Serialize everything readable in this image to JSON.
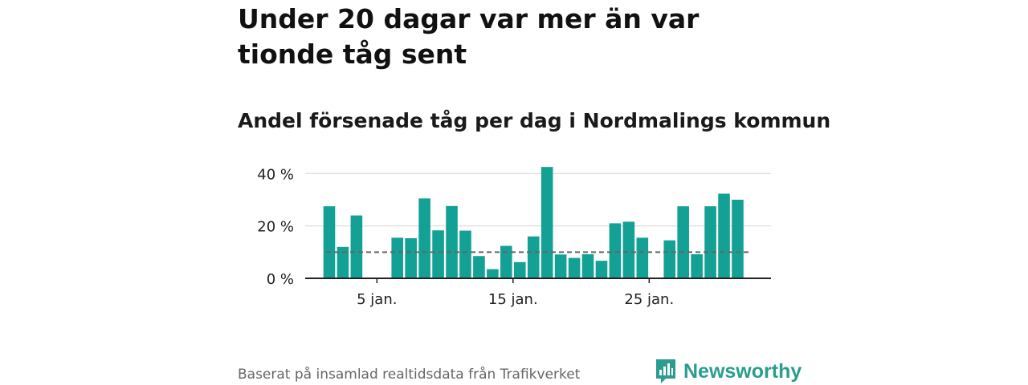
{
  "title": "Under 20 dagar var mer än var tionde tåg sent",
  "subtitle": "Andel försenade tåg per dag i Nordmalings kommun",
  "source": "Baserat på insamlad realtidsdata från Trafikverket",
  "brand": {
    "name": "Newsworthy",
    "color": "#2a9d8f"
  },
  "chart_data": {
    "type": "bar",
    "x": [
      1,
      2,
      3,
      4,
      5,
      6,
      7,
      8,
      9,
      10,
      11,
      12,
      13,
      14,
      15,
      16,
      17,
      18,
      19,
      20,
      21,
      22,
      23,
      24,
      25,
      26,
      27,
      28,
      29,
      30,
      31
    ],
    "values": [
      27.5,
      12,
      24,
      0,
      0,
      15.5,
      15.3,
      30.5,
      18.3,
      27.6,
      18.2,
      8.5,
      3.5,
      12.4,
      6.2,
      16,
      42.5,
      9.1,
      7.8,
      9.2,
      6.7,
      21,
      21.6,
      15.5,
      0,
      14.5,
      27.5,
      9.2,
      27.5,
      32.3,
      30
    ],
    "reference_line": 10,
    "ylim": [
      0,
      45
    ],
    "yticks": [
      0,
      20,
      40
    ],
    "ytick_labels": [
      "0 %",
      "20 %",
      "40 %"
    ],
    "xticks": [
      5,
      15,
      25
    ],
    "xtick_labels": [
      "5 jan.",
      "15 jan.",
      "25 jan."
    ],
    "bar_color": "#14a195",
    "grid": true
  }
}
